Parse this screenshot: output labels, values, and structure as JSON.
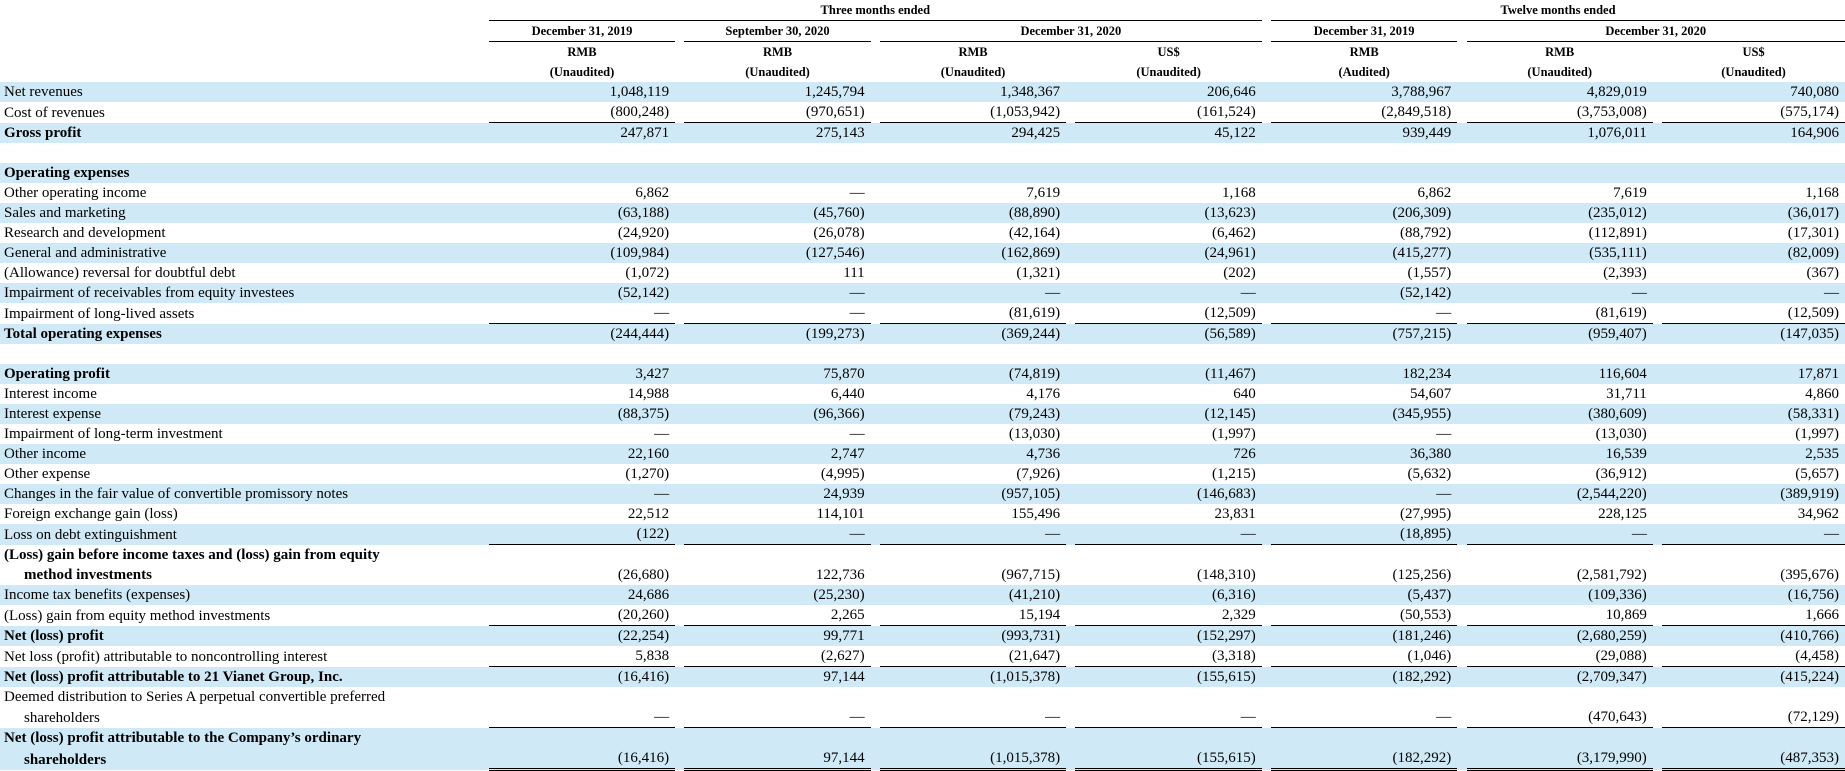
{
  "header": {
    "group_three": "Three months ended",
    "group_twelve": "Twelve months ended",
    "date_dec2019": "December 31, 2019",
    "date_sep2020": "September 30, 2020",
    "date_dec2020": "December 31, 2020",
    "columns": [
      {
        "currency": "RMB",
        "status": "(Unaudited)"
      },
      {
        "currency": "RMB",
        "status": "(Unaudited)"
      },
      {
        "currency": "RMB",
        "status": "(Unaudited)"
      },
      {
        "currency": "US$",
        "status": "(Unaudited)"
      },
      {
        "currency": "RMB",
        "status": "(Audited)"
      },
      {
        "currency": "RMB",
        "status": "(Unaudited)"
      },
      {
        "currency": "US$",
        "status": "(Unaudited)"
      }
    ]
  },
  "rows": [
    {
      "label": "Net revenues",
      "values": [
        "1,048,119",
        "1,245,794",
        "1,348,367",
        "206,646",
        "3,788,967",
        "4,829,019",
        "740,080"
      ],
      "shade": true
    },
    {
      "label": "Cost of revenues",
      "values": [
        "(800,248)",
        "(970,651)",
        "(1,053,942)",
        "(161,524)",
        "(2,849,518)",
        "(3,753,008)",
        "(575,174)"
      ],
      "underline": true
    },
    {
      "label": "Gross profit",
      "values": [
        "247,871",
        "275,143",
        "294,425",
        "45,122",
        "939,449",
        "1,076,011",
        "164,906"
      ],
      "bold": true,
      "shade": true
    },
    {
      "spacer": true
    },
    {
      "label": "Operating expenses",
      "values": [
        "",
        "",
        "",
        "",
        "",
        "",
        ""
      ],
      "bold": true,
      "shade": true
    },
    {
      "label": "Other operating income",
      "values": [
        "6,862",
        "—",
        "7,619",
        "1,168",
        "6,862",
        "7,619",
        "1,168"
      ]
    },
    {
      "label": "Sales and marketing",
      "values": [
        "(63,188)",
        "(45,760)",
        "(88,890)",
        "(13,623)",
        "(206,309)",
        "(235,012)",
        "(36,017)"
      ],
      "shade": true
    },
    {
      "label": "Research and development",
      "values": [
        "(24,920)",
        "(26,078)",
        "(42,164)",
        "(6,462)",
        "(88,792)",
        "(112,891)",
        "(17,301)"
      ]
    },
    {
      "label": "General and administrative",
      "values": [
        "(109,984)",
        "(127,546)",
        "(162,869)",
        "(24,961)",
        "(415,277)",
        "(535,111)",
        "(82,009)"
      ],
      "shade": true
    },
    {
      "label": "(Allowance) reversal for doubtful debt",
      "values": [
        "(1,072)",
        "111",
        "(1,321)",
        "(202)",
        "(1,557)",
        "(2,393)",
        "(367)"
      ]
    },
    {
      "label": "Impairment of receivables from equity investees",
      "values": [
        "(52,142)",
        "—",
        "—",
        "—",
        "(52,142)",
        "—",
        "—"
      ],
      "shade": true
    },
    {
      "label": "Impairment of long-lived assets",
      "values": [
        "—",
        "—",
        "(81,619)",
        "(12,509)",
        "—",
        "(81,619)",
        "(12,509)"
      ],
      "underline": true
    },
    {
      "label": "Total operating expenses",
      "values": [
        "(244,444)",
        "(199,273)",
        "(369,244)",
        "(56,589)",
        "(757,215)",
        "(959,407)",
        "(147,035)"
      ],
      "bold": true,
      "shade": true
    },
    {
      "spacer": true
    },
    {
      "label": "Operating profit",
      "values": [
        "3,427",
        "75,870",
        "(74,819)",
        "(11,467)",
        "182,234",
        "116,604",
        "17,871"
      ],
      "bold": true,
      "shade": true
    },
    {
      "label": "Interest income",
      "values": [
        "14,988",
        "6,440",
        "4,176",
        "640",
        "54,607",
        "31,711",
        "4,860"
      ]
    },
    {
      "label": "Interest expense",
      "values": [
        "(88,375)",
        "(96,366)",
        "(79,243)",
        "(12,145)",
        "(345,955)",
        "(380,609)",
        "(58,331)"
      ],
      "shade": true
    },
    {
      "label": "Impairment of long-term investment",
      "values": [
        "—",
        "—",
        "(13,030)",
        "(1,997)",
        "—",
        "(13,030)",
        "(1,997)"
      ]
    },
    {
      "label": "Other income",
      "values": [
        "22,160",
        "2,747",
        "4,736",
        "726",
        "36,380",
        "16,539",
        "2,535"
      ],
      "shade": true
    },
    {
      "label": "Other expense",
      "values": [
        "(1,270)",
        "(4,995)",
        "(7,926)",
        "(1,215)",
        "(5,632)",
        "(36,912)",
        "(5,657)"
      ]
    },
    {
      "label": "Changes in the fair value of convertible promissory notes",
      "values": [
        "—",
        "24,939",
        "(957,105)",
        "(146,683)",
        "—",
        "(2,544,220)",
        "(389,919)"
      ],
      "shade": true
    },
    {
      "label": "Foreign exchange gain (loss)",
      "values": [
        "22,512",
        "114,101",
        "155,496",
        "23,831",
        "(27,995)",
        "228,125",
        "34,962"
      ]
    },
    {
      "label": "Loss on debt extinguishment",
      "values": [
        "(122)",
        "—",
        "—",
        "—",
        "(18,895)",
        "—",
        "—"
      ],
      "shade": true,
      "underline": true
    },
    {
      "label": "(Loss) gain before income taxes and (loss) gain from equity",
      "values": [
        "",
        "",
        "",
        "",
        "",
        "",
        ""
      ],
      "bold": true
    },
    {
      "label": "method investments",
      "values": [
        "(26,680)",
        "122,736",
        "(967,715)",
        "(148,310)",
        "(125,256)",
        "(2,581,792)",
        "(395,676)"
      ],
      "bold": true,
      "indent": true
    },
    {
      "label": "Income tax benefits (expenses)",
      "values": [
        "24,686",
        "(25,230)",
        "(41,210)",
        "(6,316)",
        "(5,437)",
        "(109,336)",
        "(16,756)"
      ],
      "shade": true
    },
    {
      "label": "(Loss) gain from equity method investments",
      "values": [
        "(20,260)",
        "2,265",
        "15,194",
        "2,329",
        "(50,553)",
        "10,869",
        "1,666"
      ],
      "underline": true
    },
    {
      "label": "Net (loss) profit",
      "values": [
        "(22,254)",
        "99,771",
        "(993,731)",
        "(152,297)",
        "(181,246)",
        "(2,680,259)",
        "(410,766)"
      ],
      "bold": true,
      "shade": true
    },
    {
      "label": "Net loss (profit) attributable to noncontrolling interest",
      "values": [
        "5,838",
        "(2,627)",
        "(21,647)",
        "(3,318)",
        "(1,046)",
        "(29,088)",
        "(4,458)"
      ],
      "underline": true
    },
    {
      "label": "Net (loss) profit attributable to 21 Vianet Group, Inc.",
      "values": [
        "(16,416)",
        "97,144",
        "(1,015,378)",
        "(155,615)",
        "(182,292)",
        "(2,709,347)",
        "(415,224)"
      ],
      "bold": true,
      "shade": true
    },
    {
      "label": "Deemed distribution to Series A perpetual convertible preferred",
      "values": [
        "",
        "",
        "",
        "",
        "",
        "",
        ""
      ]
    },
    {
      "label": "shareholders",
      "values": [
        "—",
        "—",
        "—",
        "—",
        "—",
        "(470,643)",
        "(72,129)"
      ],
      "indent": true,
      "underline": true
    },
    {
      "label": "Net (loss) profit attributable to the Company’s ordinary",
      "values": [
        "",
        "",
        "",
        "",
        "",
        "",
        ""
      ],
      "bold": true,
      "shade": true
    },
    {
      "label": "shareholders",
      "values": [
        "(16,416)",
        "97,144",
        "(1,015,378)",
        "(155,615)",
        "(182,292)",
        "(3,179,990)",
        "(487,353)"
      ],
      "bold": true,
      "shade": true,
      "indent": true,
      "double": true
    }
  ]
}
